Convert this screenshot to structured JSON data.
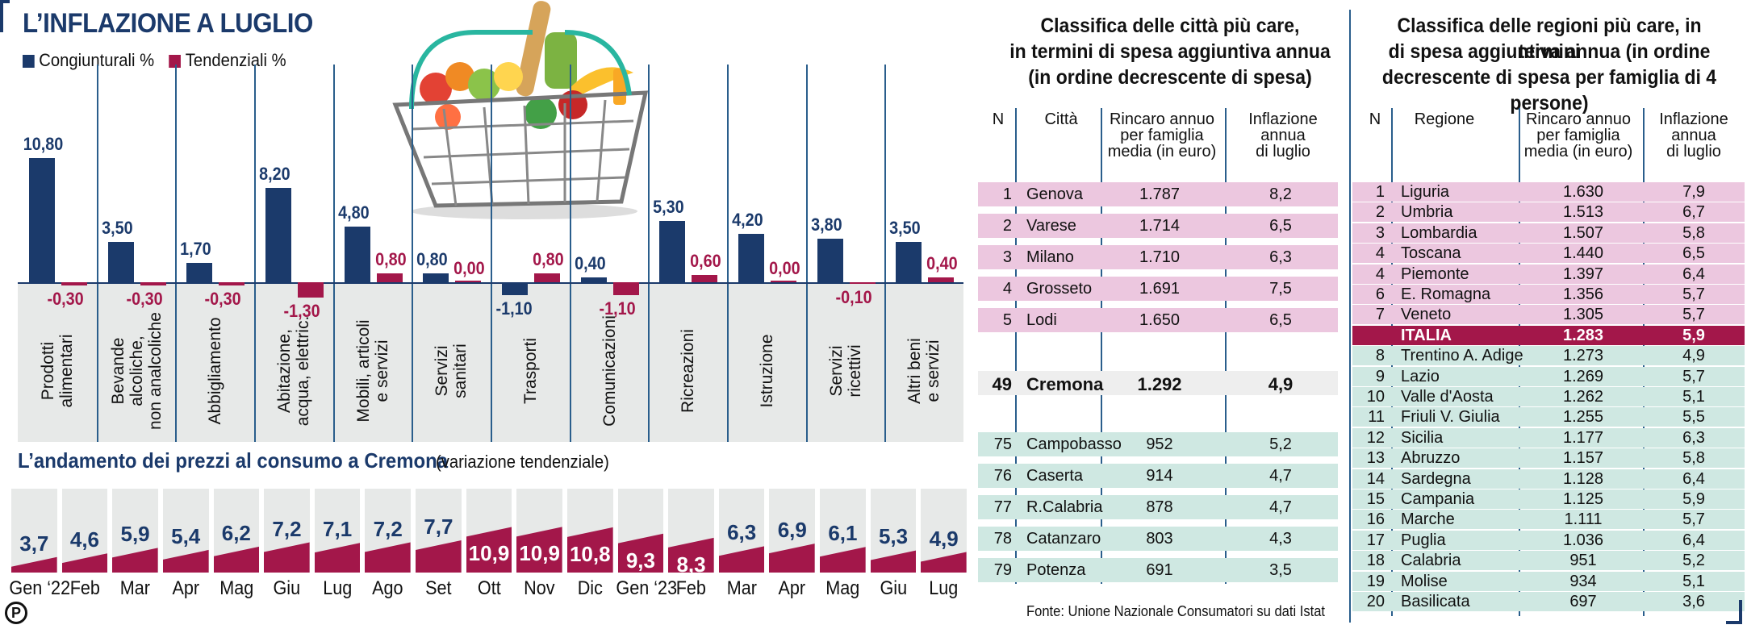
{
  "title": "L’INFLAZIONE A LUGLIO",
  "legend": [
    "Congiunturali %",
    "Tendenziali %"
  ],
  "colors": {
    "congiunturali": "#1b3a6b",
    "tendenziali": "#a3174a",
    "pink_row": "#ecc7df",
    "teal_row": "#cfe8e2"
  },
  "chart_data": [
    {
      "type": "bar",
      "categories": [
        "Prodotti\nalimentari",
        "Bevande\nalcoliche,\nnon analcoliche",
        "Abbigliamento",
        "Abitazione,\nacqua, elettric.",
        "Mobili, articoli\ne servizi",
        "Servizi\nsanitari",
        "Trasporti",
        "Comunicazioni",
        "Ricreazioni",
        "Istruzione",
        "Servizi\nricettivi",
        "Altri beni\ne servizi"
      ],
      "series": [
        {
          "name": "Congiunturali %",
          "values": [
            10.8,
            3.5,
            1.7,
            8.2,
            4.8,
            0.8,
            -1.1,
            0.4,
            5.3,
            4.2,
            3.8,
            3.5
          ],
          "labels": [
            "10,80",
            "3,50",
            "1,70",
            "8,20",
            "4,80",
            "0,80",
            "-1,10",
            "0,40",
            "5,30",
            "4,20",
            "3,80",
            "3,50"
          ]
        },
        {
          "name": "Tendenziali %",
          "values": [
            -0.3,
            -0.3,
            -0.3,
            -1.3,
            0.8,
            0.0,
            0.8,
            -1.1,
            0.6,
            0.0,
            -0.1,
            0.4
          ],
          "labels": [
            "-0,30",
            "-0,30",
            "-0,30",
            "-1,30",
            "0,80",
            "0,00",
            "0,80",
            "-1,10",
            "0,60",
            "0,00",
            "-0,10",
            "0,40"
          ]
        }
      ]
    },
    {
      "type": "area",
      "title": "L’andamento dei prezzi al consumo a Cremona",
      "note": "(variazione tendenziale)",
      "categories": [
        "Gen ‘22",
        "Feb",
        "Mar",
        "Apr",
        "Mag",
        "Giu",
        "Lug",
        "Ago",
        "Set",
        "Ott",
        "Nov",
        "Dic",
        "Gen ‘23",
        "Feb",
        "Mar",
        "Apr",
        "Mag",
        "Giu",
        "Lug"
      ],
      "values": [
        3.7,
        4.6,
        5.9,
        5.4,
        6.2,
        7.2,
        7.1,
        7.2,
        7.7,
        10.9,
        10.9,
        10.8,
        9.3,
        8.3,
        6.3,
        6.9,
        6.1,
        5.3,
        4.9
      ],
      "labels": [
        "3,7",
        "4,6",
        "5,9",
        "5,4",
        "6,2",
        "7,2",
        "7,1",
        "7,2",
        "7,7",
        "10,9",
        "10,9",
        "10,8",
        "9,3",
        "8,3",
        "6,3",
        "6,9",
        "6,1",
        "5,3",
        "4,9"
      ]
    }
  ],
  "cities": {
    "title": [
      "Classifica delle città più care,",
      "in termini di spesa aggiuntiva annua",
      "(in ordine decrescente di spesa)"
    ],
    "headers": [
      "N",
      "Città",
      "Rincaro annuo\nper famiglia\nmedia (in euro)",
      "Inflazione\nannua\ndi luglio"
    ],
    "rows": [
      [
        "1",
        "Genova",
        "1.787",
        "8,2"
      ],
      [
        "2",
        "Varese",
        "1.714",
        "6,5"
      ],
      [
        "3",
        "Milano",
        "1.710",
        "6,3"
      ],
      [
        "4",
        "Grosseto",
        "1.691",
        "7,5"
      ],
      [
        "5",
        "Lodi",
        "1.650",
        "6,5"
      ],
      [
        "49",
        "Cremona",
        "1.292",
        "4,9"
      ],
      [
        "75",
        "Campobasso",
        "952",
        "5,2"
      ],
      [
        "76",
        "Caserta",
        "914",
        "4,7"
      ],
      [
        "77",
        "R.Calabria",
        "878",
        "4,7"
      ],
      [
        "78",
        "Catanzaro",
        "803",
        "4,3"
      ],
      [
        "79",
        "Potenza",
        "691",
        "3,5"
      ]
    ],
    "source": "Fonte: Unione Nazionale Consumatori su dati Istat"
  },
  "regions": {
    "title": [
      "Classifica delle regioni più care, in termini",
      "di spesa aggiuntiva annua (in ordine",
      "decrescente di spesa per famiglia di 4 persone)"
    ],
    "headers": [
      "N",
      "Regione",
      "Rincaro annuo\nper famiglia\nmedia (in euro)",
      "Inflazione\nannua\ndi luglio"
    ],
    "rows": [
      [
        "1",
        "Liguria",
        "1.630",
        "7,9"
      ],
      [
        "2",
        "Umbria",
        "1.513",
        "6,7"
      ],
      [
        "3",
        "Lombardia",
        "1.507",
        "5,8"
      ],
      [
        "4",
        "Toscana",
        "1.440",
        "6,5"
      ],
      [
        "4",
        "Piemonte",
        "1.397",
        "6,4"
      ],
      [
        "6",
        "E. Romagna",
        "1.356",
        "5,7"
      ],
      [
        "7",
        "Veneto",
        "1.305",
        "5,7"
      ],
      [
        "",
        "ITALIA",
        "1.283",
        "5,9"
      ],
      [
        "8",
        "Trentino A. Adige",
        "1.273",
        "4,9"
      ],
      [
        "9",
        "Lazio",
        "1.269",
        "5,7"
      ],
      [
        "10",
        "Valle d'Aosta",
        "1.262",
        "5,1"
      ],
      [
        "11",
        "Friuli V. Giulia",
        "1.255",
        "5,5"
      ],
      [
        "12",
        "Sicilia",
        "1.177",
        "6,3"
      ],
      [
        "13",
        "Abruzzo",
        "1.157",
        "5,8"
      ],
      [
        "14",
        "Sardegna",
        "1.128",
        "6,4"
      ],
      [
        "15",
        "Campania",
        "1.125",
        "5,9"
      ],
      [
        "16",
        "Marche",
        "1.111",
        "5,7"
      ],
      [
        "17",
        "Puglia",
        "1.036",
        "6,4"
      ],
      [
        "18",
        "Calabria",
        "951",
        "5,2"
      ],
      [
        "19",
        "Molise",
        "934",
        "5,1"
      ],
      [
        "20",
        "Basilicata",
        "697",
        "3,6"
      ]
    ]
  },
  "logo": "P"
}
